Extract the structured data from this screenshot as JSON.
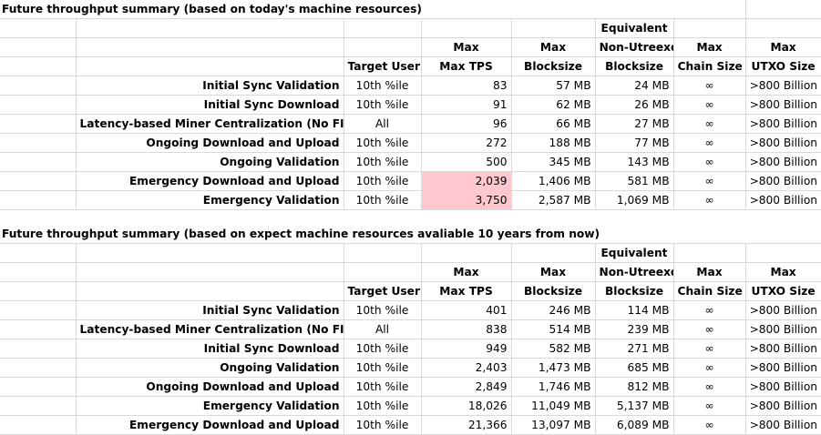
{
  "section1": {
    "title": "Future throughput summary (based on today's machine resources)",
    "headers": {
      "row1": [
        "",
        "",
        "",
        "Equivalent",
        "",
        ""
      ],
      "row2": [
        "",
        "Max",
        "Max",
        "Non-Utreexo",
        "Max",
        "Max"
      ],
      "row3": [
        "Target User",
        "Max TPS",
        "Blocksize",
        "Blocksize",
        "Chain Size",
        "UTXO Size"
      ]
    },
    "rows": [
      {
        "label": "Initial Sync Validation",
        "target_user": "10th %ile",
        "max_tps": "83",
        "max_blocksize": "57 MB",
        "non_utreexo": "24 MB",
        "chain_size": "∞",
        "utxo_size": ">800 Billion",
        "highlight": false
      },
      {
        "label": "Initial Sync Download",
        "target_user": "10th %ile",
        "max_tps": "91",
        "max_blocksize": "62 MB",
        "non_utreexo": "26 MB",
        "chain_size": "∞",
        "utxo_size": ">800 Billion",
        "highlight": false
      },
      {
        "label": "Latency-based Miner Centralization (No FIBRE, With Sybil)",
        "target_user": "All",
        "max_tps": "96",
        "max_blocksize": "66 MB",
        "non_utreexo": "27 MB",
        "chain_size": "∞",
        "utxo_size": ">800 Billion",
        "highlight": false
      },
      {
        "label": "Ongoing Download and Upload",
        "target_user": "10th %ile",
        "max_tps": "272",
        "max_blocksize": "188 MB",
        "non_utreexo": "77 MB",
        "chain_size": "∞",
        "utxo_size": ">800 Billion",
        "highlight": false
      },
      {
        "label": "Ongoing Validation",
        "target_user": "10th %ile",
        "max_tps": "500",
        "max_blocksize": "345 MB",
        "non_utreexo": "143 MB",
        "chain_size": "∞",
        "utxo_size": ">800 Billion",
        "highlight": false
      },
      {
        "label": "Emergency Download and Upload",
        "target_user": "10th %ile",
        "max_tps": "2,039",
        "max_blocksize": "1,406 MB",
        "non_utreexo": "581 MB",
        "chain_size": "∞",
        "utxo_size": ">800 Billion",
        "highlight": true
      },
      {
        "label": "Emergency Validation",
        "target_user": "10th %ile",
        "max_tps": "3,750",
        "max_blocksize": "2,587 MB",
        "non_utreexo": "1,069 MB",
        "chain_size": "∞",
        "utxo_size": ">800 Billion",
        "highlight": true
      }
    ]
  },
  "section2": {
    "title": "Future throughput summary (based on expect machine resources avaliable 10 years from now)",
    "headers": {
      "row1": [
        "",
        "",
        "",
        "Equivalent",
        "",
        ""
      ],
      "row2": [
        "",
        "Max",
        "Max",
        "Non-Utreexo",
        "Max",
        "Max"
      ],
      "row3": [
        "Target User",
        "Max TPS",
        "Blocksize",
        "Blocksize",
        "Chain Size",
        "UTXO Size"
      ]
    },
    "rows": [
      {
        "label": "Initial Sync Validation",
        "target_user": "10th %ile",
        "max_tps": "401",
        "max_blocksize": "246 MB",
        "non_utreexo": "114 MB",
        "chain_size": "∞",
        "utxo_size": ">800 Billion",
        "highlight": false
      },
      {
        "label": "Latency-based Miner Centralization (No FIBRE, With Sybil)",
        "target_user": "All",
        "max_tps": "838",
        "max_blocksize": "514 MB",
        "non_utreexo": "239 MB",
        "chain_size": "∞",
        "utxo_size": ">800 Billion",
        "highlight": false
      },
      {
        "label": "Initial Sync Download",
        "target_user": "10th %ile",
        "max_tps": "949",
        "max_blocksize": "582 MB",
        "non_utreexo": "271 MB",
        "chain_size": "∞",
        "utxo_size": ">800 Billion",
        "highlight": false
      },
      {
        "label": "Ongoing Validation",
        "target_user": "10th %ile",
        "max_tps": "2,403",
        "max_blocksize": "1,473 MB",
        "non_utreexo": "685 MB",
        "chain_size": "∞",
        "utxo_size": ">800 Billion",
        "highlight": false
      },
      {
        "label": "Ongoing Download and Upload",
        "target_user": "10th %ile",
        "max_tps": "2,849",
        "max_blocksize": "1,746 MB",
        "non_utreexo": "812 MB",
        "chain_size": "∞",
        "utxo_size": ">800 Billion",
        "highlight": false
      },
      {
        "label": "Emergency Validation",
        "target_user": "10th %ile",
        "max_tps": "18,026",
        "max_blocksize": "11,049 MB",
        "non_utreexo": "5,137 MB",
        "chain_size": "∞",
        "utxo_size": ">800 Billion",
        "highlight": false
      },
      {
        "label": "Emergency Download and Upload",
        "target_user": "10th %ile",
        "max_tps": "21,366",
        "max_blocksize": "13,097 MB",
        "non_utreexo": "6,089 MB",
        "chain_size": "∞",
        "utxo_size": ">800 Billion",
        "highlight": false
      }
    ]
  }
}
